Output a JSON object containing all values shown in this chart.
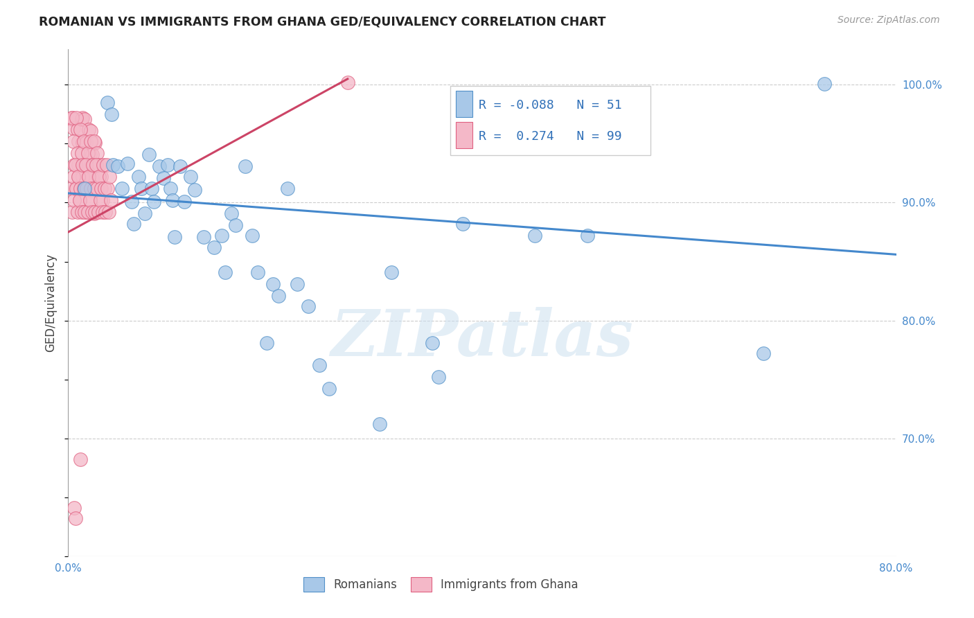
{
  "title": "ROMANIAN VS IMMIGRANTS FROM GHANA GED/EQUIVALENCY CORRELATION CHART",
  "source": "Source: ZipAtlas.com",
  "ylabel": "GED/Equivalency",
  "xlim": [
    0.0,
    0.8
  ],
  "ylim": [
    0.6,
    1.03
  ],
  "yticks": [
    0.7,
    0.8,
    0.9,
    1.0
  ],
  "ytick_labels": [
    "70.0%",
    "80.0%",
    "90.0%",
    "100.0%"
  ],
  "xticks": [
    0.0,
    0.1,
    0.2,
    0.3,
    0.4,
    0.5,
    0.6,
    0.7,
    0.8
  ],
  "xtick_labels": [
    "0.0%",
    "",
    "",
    "",
    "",
    "",
    "",
    "",
    "80.0%"
  ],
  "blue_R": -0.088,
  "blue_N": 51,
  "pink_R": 0.274,
  "pink_N": 99,
  "blue_color": "#a8c8e8",
  "pink_color": "#f4b8c8",
  "blue_edge_color": "#5090c8",
  "pink_edge_color": "#e06080",
  "blue_line_color": "#4488cc",
  "pink_line_color": "#cc4466",
  "watermark_text": "ZIPatlas",
  "legend_label_blue": "Romanians",
  "legend_label_pink": "Immigrants from Ghana",
  "blue_line_x0": 0.0,
  "blue_line_x1": 0.8,
  "blue_line_y0": 0.908,
  "blue_line_y1": 0.856,
  "pink_line_x0": 0.0,
  "pink_line_x1": 0.27,
  "pink_line_y0": 0.875,
  "pink_line_y1": 1.005,
  "blue_scatter_x": [
    0.016,
    0.038,
    0.042,
    0.043,
    0.048,
    0.052,
    0.057,
    0.061,
    0.063,
    0.068,
    0.071,
    0.074,
    0.078,
    0.081,
    0.083,
    0.088,
    0.092,
    0.096,
    0.099,
    0.101,
    0.103,
    0.108,
    0.112,
    0.118,
    0.122,
    0.131,
    0.141,
    0.148,
    0.152,
    0.158,
    0.162,
    0.171,
    0.178,
    0.183,
    0.192,
    0.198,
    0.203,
    0.212,
    0.221,
    0.232,
    0.243,
    0.252,
    0.301,
    0.312,
    0.352,
    0.358,
    0.381,
    0.451,
    0.502,
    0.672,
    0.731
  ],
  "blue_scatter_y": [
    0.912,
    0.985,
    0.975,
    0.932,
    0.931,
    0.912,
    0.933,
    0.901,
    0.882,
    0.922,
    0.912,
    0.891,
    0.941,
    0.912,
    0.901,
    0.931,
    0.921,
    0.932,
    0.912,
    0.902,
    0.871,
    0.931,
    0.901,
    0.922,
    0.911,
    0.871,
    0.862,
    0.872,
    0.841,
    0.891,
    0.881,
    0.931,
    0.872,
    0.841,
    0.781,
    0.831,
    0.821,
    0.912,
    0.831,
    0.812,
    0.762,
    0.742,
    0.712,
    0.841,
    0.781,
    0.752,
    0.882,
    0.872,
    0.872,
    0.772,
    1.001
  ],
  "pink_scatter_x": [
    0.004,
    0.004,
    0.005,
    0.006,
    0.007,
    0.009,
    0.01,
    0.01,
    0.011,
    0.012,
    0.013,
    0.014,
    0.014,
    0.015,
    0.016,
    0.017,
    0.018,
    0.019,
    0.02,
    0.021,
    0.021,
    0.022,
    0.022,
    0.023,
    0.023,
    0.024,
    0.025,
    0.026,
    0.027,
    0.028,
    0.004,
    0.005,
    0.006,
    0.007,
    0.008,
    0.009,
    0.01,
    0.011,
    0.012,
    0.013,
    0.014,
    0.015,
    0.016,
    0.017,
    0.018,
    0.019,
    0.02,
    0.021,
    0.022,
    0.023,
    0.024,
    0.025,
    0.026,
    0.027,
    0.028,
    0.029,
    0.03,
    0.031,
    0.032,
    0.033,
    0.003,
    0.004,
    0.005,
    0.006,
    0.007,
    0.008,
    0.009,
    0.01,
    0.011,
    0.012,
    0.013,
    0.014,
    0.015,
    0.016,
    0.017,
    0.018,
    0.019,
    0.02,
    0.021,
    0.022,
    0.023,
    0.024,
    0.025,
    0.026,
    0.027,
    0.028,
    0.029,
    0.03,
    0.031,
    0.032,
    0.033,
    0.034,
    0.035,
    0.036,
    0.037,
    0.038,
    0.039,
    0.04,
    0.041,
    0.27
  ],
  "pink_scatter_y": [
    0.972,
    0.971,
    0.963,
    0.641,
    0.632,
    0.962,
    0.952,
    0.932,
    0.921,
    0.682,
    0.971,
    0.972,
    0.951,
    0.931,
    0.971,
    0.951,
    0.931,
    0.911,
    0.962,
    0.941,
    0.931,
    0.911,
    0.961,
    0.941,
    0.921,
    0.911,
    0.891,
    0.951,
    0.931,
    0.911,
    0.972,
    0.952,
    0.932,
    0.912,
    0.972,
    0.942,
    0.922,
    0.902,
    0.962,
    0.942,
    0.922,
    0.952,
    0.932,
    0.912,
    0.892,
    0.942,
    0.922,
    0.902,
    0.952,
    0.932,
    0.912,
    0.952,
    0.932,
    0.912,
    0.942,
    0.922,
    0.932,
    0.912,
    0.922,
    0.902,
    0.912,
    0.892,
    0.922,
    0.902,
    0.932,
    0.912,
    0.892,
    0.922,
    0.902,
    0.912,
    0.892,
    0.932,
    0.912,
    0.892,
    0.932,
    0.912,
    0.892,
    0.922,
    0.902,
    0.912,
    0.892,
    0.932,
    0.912,
    0.892,
    0.932,
    0.912,
    0.892,
    0.922,
    0.902,
    0.912,
    0.892,
    0.932,
    0.912,
    0.892,
    0.932,
    0.912,
    0.892,
    0.922,
    0.902,
    1.002
  ]
}
